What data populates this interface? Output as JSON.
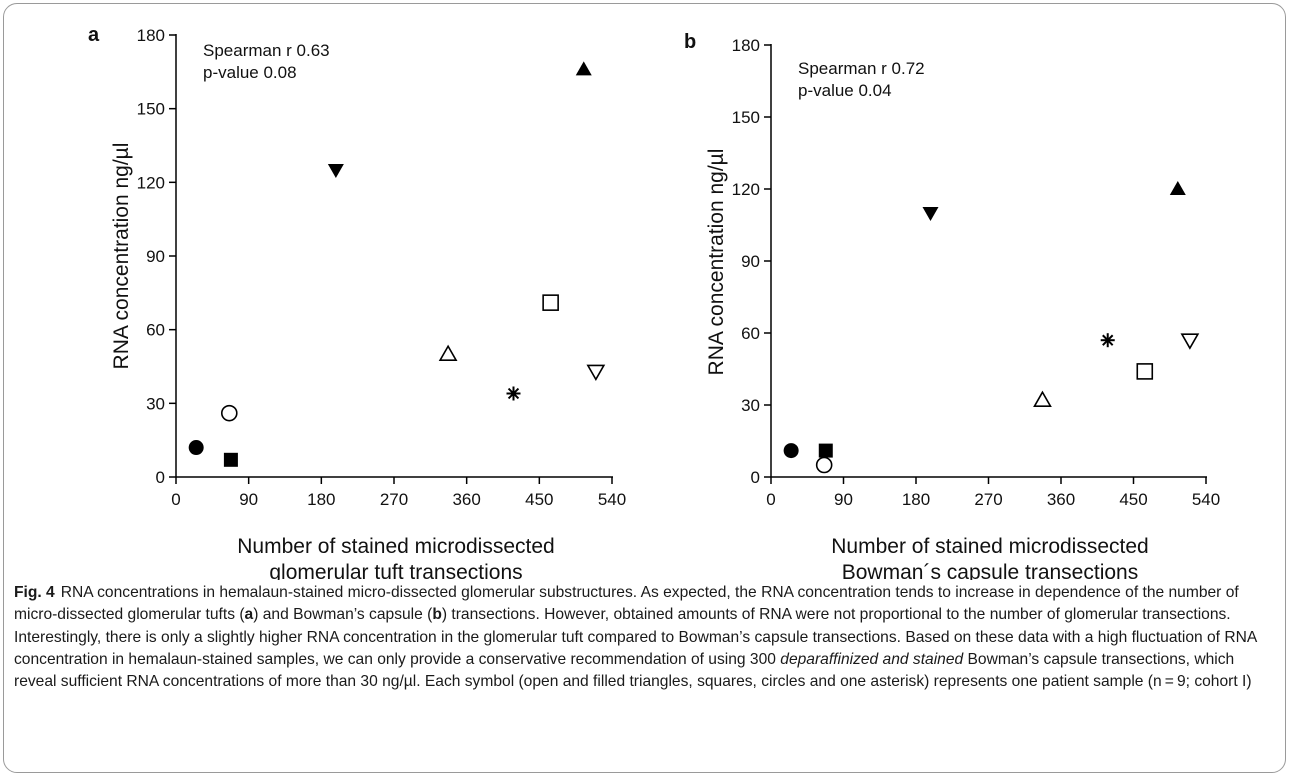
{
  "chart_data": [
    {
      "type": "scatter",
      "panel_label": "a",
      "annotation_lines": [
        "Spearman r 0.63",
        "p-value 0.08"
      ],
      "ylabel": "RNA concentration ng/µl",
      "xlabel_lines": [
        "Number of stained microdissected",
        "glomerular tuft transections"
      ],
      "xlim": [
        0,
        540
      ],
      "ylim": [
        0,
        180
      ],
      "xticks": [
        "0",
        "90",
        "180",
        "270",
        "360",
        "450",
        "540"
      ],
      "yticks": [
        "0",
        "30",
        "60",
        "90",
        "120",
        "150",
        "180"
      ],
      "points": [
        {
          "x": 25,
          "y": 12,
          "marker": "filled-circle"
        },
        {
          "x": 66,
          "y": 26,
          "marker": "open-circle"
        },
        {
          "x": 68,
          "y": 7,
          "marker": "filled-square"
        },
        {
          "x": 198,
          "y": 125,
          "marker": "filled-triangle-down"
        },
        {
          "x": 337,
          "y": 50,
          "marker": "open-triangle-up"
        },
        {
          "x": 418,
          "y": 34,
          "marker": "asterisk"
        },
        {
          "x": 464,
          "y": 71,
          "marker": "open-square"
        },
        {
          "x": 505,
          "y": 166,
          "marker": "filled-triangle-up"
        },
        {
          "x": 520,
          "y": 43,
          "marker": "open-triangle-down"
        }
      ]
    },
    {
      "type": "scatter",
      "panel_label": "b",
      "annotation_lines": [
        "Spearman r 0.72",
        "p-value 0.04"
      ],
      "ylabel": "RNA concentration ng/µl",
      "xlabel_lines": [
        "Number of stained microdissected",
        "Bowman´s capsule transections"
      ],
      "xlim": [
        0,
        540
      ],
      "ylim": [
        0,
        180
      ],
      "xticks": [
        "0",
        "90",
        "180",
        "270",
        "360",
        "450",
        "540"
      ],
      "yticks": [
        "0",
        "30",
        "60",
        "90",
        "120",
        "150",
        "180"
      ],
      "points": [
        {
          "x": 25,
          "y": 11,
          "marker": "filled-circle"
        },
        {
          "x": 66,
          "y": 5,
          "marker": "open-circle"
        },
        {
          "x": 68,
          "y": 11,
          "marker": "filled-square"
        },
        {
          "x": 198,
          "y": 110,
          "marker": "filled-triangle-down"
        },
        {
          "x": 337,
          "y": 32,
          "marker": "open-triangle-up"
        },
        {
          "x": 418,
          "y": 57,
          "marker": "asterisk"
        },
        {
          "x": 464,
          "y": 44,
          "marker": "open-square"
        },
        {
          "x": 505,
          "y": 120,
          "marker": "filled-triangle-up"
        },
        {
          "x": 520,
          "y": 57,
          "marker": "open-triangle-down"
        }
      ]
    }
  ],
  "caption": {
    "label": "Fig. 4",
    "s1": "RNA concentrations in hemalaun-stained micro-dissected glomerular substructures. As expected, the RNA concentration tends to increase in dependence of the number of micro-dissected glomerular tufts (",
    "b1": "a",
    "s2": ") and Bowman’s capsule (",
    "b2": "b",
    "s3": ") transections. However, obtained amounts of RNA were not proportional to the number of glomerular transections. Interestingly, there is only a slightly higher RNA concentration in the glomerular tuft compared to Bowman’s capsule transections. Based on these data with a high fluctuation of RNA concentration in hemalaun-stained samples, we can only provide a conservative recommendation of using 300 ",
    "i1": "deparaffinized and stained",
    "s4": " Bowman’s capsule transections, which reveal sufficient RNA concentrations of more than 30 ng/µl. Each symbol (open and filled triangles, squares, circles and one asterisk) represents one patient sample (n = 9; cohort I)"
  }
}
